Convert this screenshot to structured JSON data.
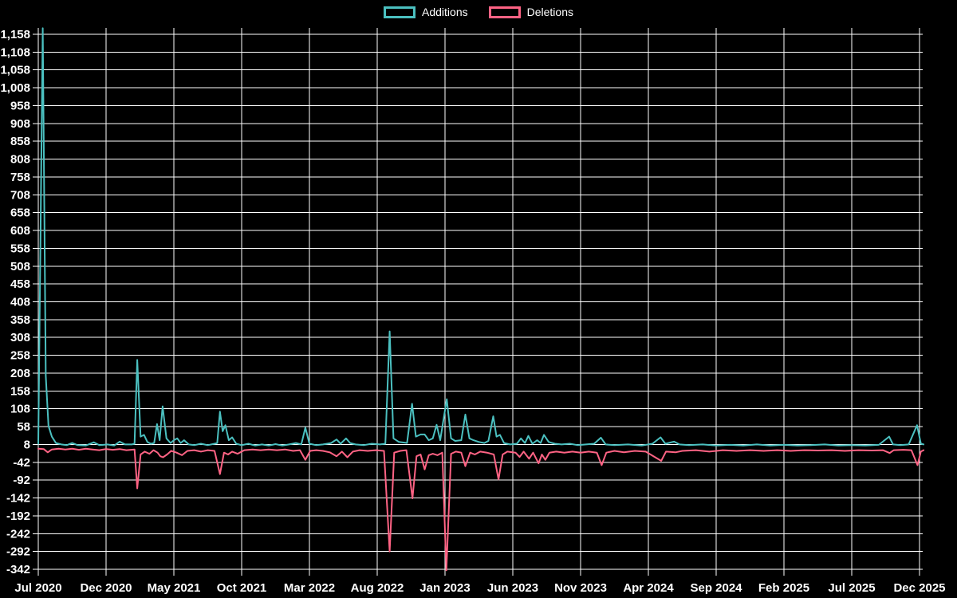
{
  "legend": {
    "additions_label": "Additions",
    "deletions_label": "Deletions"
  },
  "colors": {
    "additions": "#4bc0c0",
    "deletions": "#ff6384",
    "grid": "#ffffff",
    "background": "#000000",
    "text": "#ffffff"
  },
  "chart_data": {
    "type": "line",
    "title": "",
    "legend_position": "top",
    "grid": true,
    "x_axis": {
      "unit": "months since Jul 2020",
      "tick_labels": [
        "Jul 2020",
        "Dec 2020",
        "May 2021",
        "Oct 2021",
        "Mar 2022",
        "Aug 2022",
        "Jan 2023",
        "Jun 2023",
        "Nov 2023",
        "Apr 2024",
        "Sep 2024",
        "Feb 2025",
        "Jul 2025",
        "Dec 2025"
      ],
      "tick_months": [
        0,
        5,
        10,
        15,
        20,
        25,
        30,
        35,
        40,
        45,
        50,
        55,
        60,
        65
      ]
    },
    "y_axis": {
      "min": -342,
      "max": 1158,
      "step": 50,
      "tick_labels": [
        "1,158",
        "1,108",
        "1,058",
        "1,008",
        "958",
        "908",
        "858",
        "808",
        "758",
        "708",
        "658",
        "608",
        "558",
        "508",
        "458",
        "408",
        "358",
        "308",
        "258",
        "208",
        "158",
        "108",
        "58",
        "8",
        "-42",
        "-92",
        "-142",
        "-192",
        "-242",
        "-292",
        "-342"
      ]
    },
    "series": [
      {
        "name": "Additions",
        "color": "#4bc0c0",
        "points": [
          [
            0,
            10
          ],
          [
            0.33,
            1175
          ],
          [
            0.55,
            200
          ],
          [
            0.75,
            60
          ],
          [
            1.0,
            30
          ],
          [
            1.3,
            12
          ],
          [
            1.7,
            8
          ],
          [
            2.1,
            6
          ],
          [
            2.5,
            12
          ],
          [
            2.9,
            6
          ],
          [
            3.5,
            5
          ],
          [
            4.1,
            14
          ],
          [
            4.5,
            6
          ],
          [
            5.1,
            8
          ],
          [
            5.6,
            5
          ],
          [
            6.0,
            16
          ],
          [
            6.4,
            8
          ],
          [
            6.9,
            8
          ],
          [
            7.1,
            10
          ],
          [
            7.3,
            245
          ],
          [
            7.55,
            30
          ],
          [
            7.8,
            35
          ],
          [
            8.05,
            15
          ],
          [
            8.3,
            10
          ],
          [
            8.55,
            12
          ],
          [
            8.76,
            65
          ],
          [
            8.95,
            20
          ],
          [
            9.17,
            115
          ],
          [
            9.45,
            25
          ],
          [
            9.75,
            12
          ],
          [
            10.0,
            20
          ],
          [
            10.25,
            25
          ],
          [
            10.5,
            12
          ],
          [
            10.75,
            20
          ],
          [
            11.1,
            8
          ],
          [
            11.5,
            6
          ],
          [
            12.0,
            10
          ],
          [
            12.5,
            6
          ],
          [
            13.0,
            10
          ],
          [
            13.2,
            12
          ],
          [
            13.4,
            100
          ],
          [
            13.6,
            45
          ],
          [
            13.8,
            62
          ],
          [
            14.05,
            20
          ],
          [
            14.3,
            28
          ],
          [
            14.6,
            10
          ],
          [
            15.0,
            6
          ],
          [
            15.5,
            10
          ],
          [
            16.0,
            5
          ],
          [
            16.5,
            8
          ],
          [
            17.0,
            5
          ],
          [
            17.5,
            9
          ],
          [
            18.0,
            5
          ],
          [
            18.5,
            8
          ],
          [
            19.0,
            12
          ],
          [
            19.4,
            8
          ],
          [
            19.7,
            55
          ],
          [
            20.0,
            10
          ],
          [
            20.5,
            6
          ],
          [
            21.0,
            8
          ],
          [
            21.6,
            12
          ],
          [
            22.0,
            22
          ],
          [
            22.3,
            10
          ],
          [
            22.7,
            25
          ],
          [
            23.0,
            12
          ],
          [
            23.4,
            8
          ],
          [
            24.0,
            6
          ],
          [
            24.6,
            10
          ],
          [
            25.2,
            8
          ],
          [
            25.6,
            10
          ],
          [
            25.92,
            325
          ],
          [
            26.2,
            25
          ],
          [
            26.6,
            15
          ],
          [
            27.2,
            12
          ],
          [
            27.57,
            122
          ],
          [
            27.85,
            30
          ],
          [
            28.2,
            36
          ],
          [
            28.5,
            36
          ],
          [
            28.8,
            20
          ],
          [
            29.1,
            25
          ],
          [
            29.38,
            63
          ],
          [
            29.65,
            20
          ],
          [
            30.13,
            135
          ],
          [
            30.45,
            25
          ],
          [
            30.75,
            18
          ],
          [
            31.2,
            20
          ],
          [
            31.5,
            92
          ],
          [
            31.8,
            25
          ],
          [
            32.1,
            20
          ],
          [
            32.5,
            15
          ],
          [
            32.9,
            12
          ],
          [
            33.2,
            18
          ],
          [
            33.56,
            87
          ],
          [
            33.8,
            30
          ],
          [
            34.05,
            35
          ],
          [
            34.35,
            12
          ],
          [
            34.8,
            8
          ],
          [
            35.3,
            10
          ],
          [
            35.6,
            25
          ],
          [
            35.9,
            12
          ],
          [
            36.15,
            32
          ],
          [
            36.45,
            10
          ],
          [
            36.8,
            20
          ],
          [
            37.05,
            12
          ],
          [
            37.3,
            35
          ],
          [
            37.65,
            15
          ],
          [
            38.1,
            10
          ],
          [
            38.6,
            8
          ],
          [
            39.2,
            10
          ],
          [
            39.8,
            6
          ],
          [
            40.4,
            8
          ],
          [
            41.0,
            10
          ],
          [
            41.5,
            27
          ],
          [
            41.85,
            8
          ],
          [
            42.5,
            6
          ],
          [
            43.5,
            8
          ],
          [
            44.5,
            5
          ],
          [
            45.3,
            10
          ],
          [
            45.9,
            28
          ],
          [
            46.25,
            10
          ],
          [
            46.9,
            16
          ],
          [
            47.3,
            8
          ],
          [
            48.0,
            6
          ],
          [
            49.0,
            8
          ],
          [
            50.0,
            5
          ],
          [
            51.0,
            7
          ],
          [
            52.0,
            5
          ],
          [
            53.0,
            8
          ],
          [
            54.0,
            5
          ],
          [
            55.0,
            7
          ],
          [
            56.0,
            5
          ],
          [
            57.0,
            6
          ],
          [
            58.0,
            8
          ],
          [
            59.0,
            5
          ],
          [
            60.0,
            6
          ],
          [
            61.0,
            5
          ],
          [
            62.0,
            7
          ],
          [
            62.76,
            30
          ],
          [
            63.05,
            8
          ],
          [
            63.6,
            6
          ],
          [
            64.2,
            8
          ],
          [
            64.82,
            62
          ],
          [
            65.1,
            10
          ],
          [
            65.3,
            8
          ]
        ]
      },
      {
        "name": "Deletions",
        "color": "#ff6384",
        "points": [
          [
            0,
            -4
          ],
          [
            0.4,
            -5
          ],
          [
            0.7,
            -14
          ],
          [
            1.0,
            -6
          ],
          [
            1.5,
            -4
          ],
          [
            2.0,
            -6
          ],
          [
            2.5,
            -4
          ],
          [
            3.0,
            -7
          ],
          [
            3.5,
            -4
          ],
          [
            4.0,
            -6
          ],
          [
            4.5,
            -8
          ],
          [
            5.0,
            -5
          ],
          [
            5.5,
            -7
          ],
          [
            6.0,
            -5
          ],
          [
            6.5,
            -8
          ],
          [
            7.1,
            -6
          ],
          [
            7.3,
            -115
          ],
          [
            7.55,
            -20
          ],
          [
            7.85,
            -12
          ],
          [
            8.2,
            -18
          ],
          [
            8.5,
            -8
          ],
          [
            8.8,
            -15
          ],
          [
            9.0,
            -25
          ],
          [
            9.2,
            -28
          ],
          [
            9.5,
            -20
          ],
          [
            9.8,
            -10
          ],
          [
            10.2,
            -15
          ],
          [
            10.6,
            -22
          ],
          [
            11.0,
            -10
          ],
          [
            11.5,
            -8
          ],
          [
            12.0,
            -12
          ],
          [
            12.5,
            -8
          ],
          [
            13.0,
            -10
          ],
          [
            13.4,
            -75
          ],
          [
            13.7,
            -15
          ],
          [
            14.0,
            -20
          ],
          [
            14.3,
            -12
          ],
          [
            14.7,
            -18
          ],
          [
            15.2,
            -8
          ],
          [
            15.8,
            -6
          ],
          [
            16.4,
            -8
          ],
          [
            17.0,
            -6
          ],
          [
            17.6,
            -8
          ],
          [
            18.2,
            -6
          ],
          [
            18.8,
            -10
          ],
          [
            19.3,
            -8
          ],
          [
            19.7,
            -35
          ],
          [
            20.05,
            -10
          ],
          [
            20.5,
            -8
          ],
          [
            21.0,
            -10
          ],
          [
            21.5,
            -14
          ],
          [
            22.0,
            -25
          ],
          [
            22.4,
            -12
          ],
          [
            22.8,
            -28
          ],
          [
            23.2,
            -12
          ],
          [
            23.7,
            -8
          ],
          [
            24.3,
            -10
          ],
          [
            24.9,
            -8
          ],
          [
            25.5,
            -10
          ],
          [
            25.92,
            -292
          ],
          [
            26.25,
            -15
          ],
          [
            26.7,
            -10
          ],
          [
            27.15,
            -8
          ],
          [
            27.6,
            -143
          ],
          [
            27.9,
            -25
          ],
          [
            28.2,
            -20
          ],
          [
            28.5,
            -62
          ],
          [
            28.8,
            -22
          ],
          [
            29.1,
            -18
          ],
          [
            29.45,
            -22
          ],
          [
            29.8,
            -15
          ],
          [
            30.1,
            -345
          ],
          [
            30.45,
            -18
          ],
          [
            30.8,
            -12
          ],
          [
            31.2,
            -15
          ],
          [
            31.5,
            -53
          ],
          [
            31.85,
            -15
          ],
          [
            32.2,
            -20
          ],
          [
            32.6,
            -12
          ],
          [
            33.1,
            -15
          ],
          [
            33.6,
            -20
          ],
          [
            33.95,
            -90
          ],
          [
            34.25,
            -20
          ],
          [
            34.6,
            -12
          ],
          [
            35.2,
            -15
          ],
          [
            35.5,
            -27
          ],
          [
            35.8,
            -12
          ],
          [
            36.2,
            -32
          ],
          [
            36.5,
            -15
          ],
          [
            36.9,
            -45
          ],
          [
            37.15,
            -20
          ],
          [
            37.4,
            -35
          ],
          [
            37.7,
            -15
          ],
          [
            38.2,
            -12
          ],
          [
            38.8,
            -15
          ],
          [
            39.4,
            -12
          ],
          [
            40.0,
            -15
          ],
          [
            40.6,
            -12
          ],
          [
            41.2,
            -15
          ],
          [
            41.55,
            -50
          ],
          [
            41.9,
            -15
          ],
          [
            42.5,
            -10
          ],
          [
            43.2,
            -14
          ],
          [
            44.0,
            -10
          ],
          [
            44.8,
            -12
          ],
          [
            45.95,
            -38
          ],
          [
            46.3,
            -12
          ],
          [
            47.0,
            -14
          ],
          [
            47.5,
            -10
          ],
          [
            48.5,
            -8
          ],
          [
            49.5,
            -12
          ],
          [
            50.5,
            -8
          ],
          [
            51.5,
            -10
          ],
          [
            52.5,
            -8
          ],
          [
            53.5,
            -10
          ],
          [
            54.5,
            -8
          ],
          [
            55.5,
            -10
          ],
          [
            56.5,
            -8
          ],
          [
            57.5,
            -9
          ],
          [
            58.5,
            -8
          ],
          [
            59.5,
            -10
          ],
          [
            60.5,
            -8
          ],
          [
            61.5,
            -9
          ],
          [
            62.3,
            -8
          ],
          [
            62.8,
            -16
          ],
          [
            63.1,
            -8
          ],
          [
            63.8,
            -7
          ],
          [
            64.4,
            -8
          ],
          [
            64.85,
            -50
          ],
          [
            65.1,
            -12
          ],
          [
            65.3,
            -8
          ]
        ]
      }
    ]
  }
}
